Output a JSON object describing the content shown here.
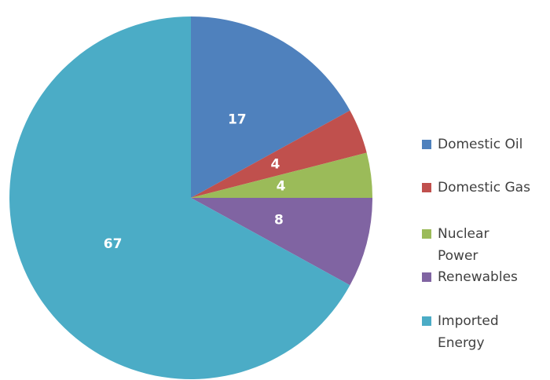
{
  "chart_data": {
    "type": "pie",
    "categories": [
      "Domestic Oil",
      "Domestic Gas",
      "Nuclear Power",
      "Renewables",
      "Imported Energy"
    ],
    "values": [
      17,
      4,
      4,
      8,
      67
    ],
    "colors": [
      "#4f81bd",
      "#c0504d",
      "#9bbb59",
      "#8064a2",
      "#4bacc6"
    ],
    "legend": "right"
  }
}
